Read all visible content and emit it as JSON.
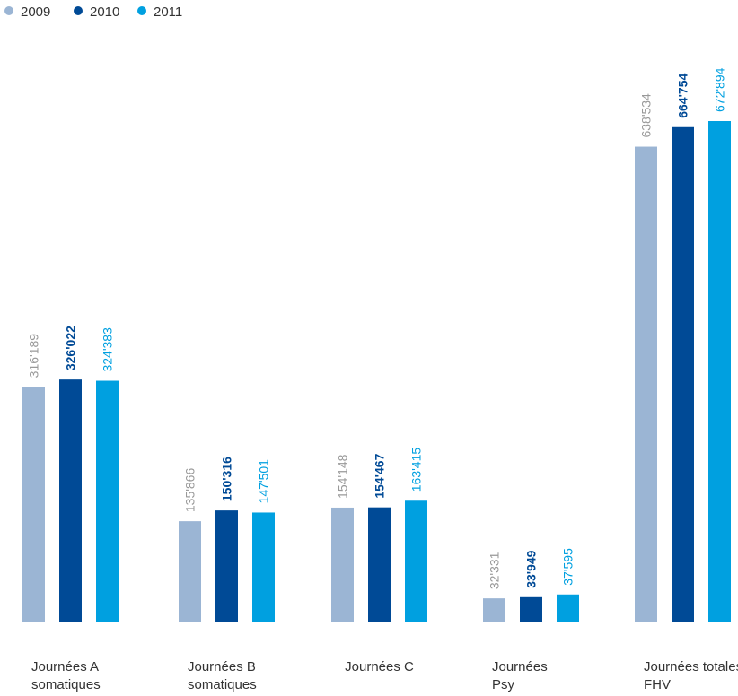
{
  "chart_data": {
    "type": "bar",
    "categories": [
      [
        "Journées A",
        "somatiques"
      ],
      [
        "Journées B",
        "somatiques"
      ],
      [
        "Journées C"
      ],
      [
        "Journées",
        "Psy"
      ],
      [
        "Journées totales",
        "FHV"
      ]
    ],
    "series": [
      {
        "name": "2009",
        "color": "#9bb5d4",
        "label_color": "#999999",
        "label_bold": false,
        "values": [
          316189,
          135866,
          154148,
          32331,
          638534
        ],
        "labels": [
          "316'189",
          "135'866",
          "154'148",
          "32'331",
          "638'534"
        ]
      },
      {
        "name": "2010",
        "color": "#004a96",
        "label_color": "#004a96",
        "label_bold": true,
        "values": [
          326022,
          150316,
          154467,
          33949,
          664754
        ],
        "labels": [
          "326'022",
          "150'316",
          "154'467",
          "33'949",
          "664'754"
        ]
      },
      {
        "name": "2011",
        "color": "#00a0e0",
        "label_color": "#00a0e0",
        "label_bold": false,
        "values": [
          324383,
          147501,
          163415,
          37595,
          672894
        ],
        "labels": [
          "324'383",
          "147'501",
          "163'415",
          "37'595",
          "672'894"
        ]
      }
    ],
    "ylim": [
      0,
      672894
    ],
    "legend_position": "top-left",
    "grid": false,
    "xlabel": "",
    "ylabel": ""
  }
}
